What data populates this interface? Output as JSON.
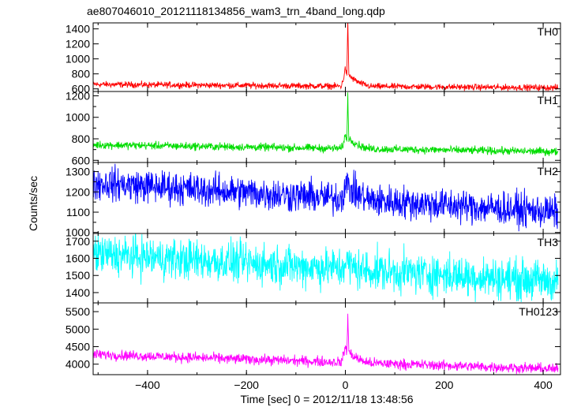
{
  "chart_data": {
    "type": "line",
    "title": "ae807046010_20121118134856_wam3_trn_4band_long.qdp",
    "xlabel": "Time [sec] 0 = 2012/11/18 13:48:56",
    "ylabel": "Counts/sec",
    "xlim": [
      -510,
      435
    ],
    "xticks": [
      -400,
      -200,
      0,
      200,
      400
    ],
    "xtick_labels": [
      "−400",
      "−200",
      "0",
      "200",
      "400"
    ],
    "panels": [
      {
        "name": "TH0",
        "color": "#ff0000",
        "ylim": [
          565,
          1480
        ],
        "yticks": [
          600,
          800,
          1000,
          1200,
          1400
        ],
        "yticks_labeled": [
          600,
          800,
          1000,
          1200,
          1400
        ],
        "series": {
          "start": 660,
          "end": 615,
          "noise": 45,
          "burst": [
            [
              -8,
              0
            ],
            [
              -3,
              120
            ],
            [
              0,
              250
            ],
            [
              3,
              150
            ],
            [
              5,
              860
            ],
            [
              7,
              150
            ],
            [
              15,
              100
            ],
            [
              30,
              40
            ],
            [
              50,
              0
            ]
          ]
        }
      },
      {
        "name": "TH1",
        "color": "#00dd00",
        "ylim": [
          580,
          1240
        ],
        "yticks": [
          600,
          700,
          800,
          900,
          1000,
          1100,
          1200
        ],
        "yticks_labeled": [
          600,
          800,
          1000,
          1200
        ],
        "series": {
          "start": 745,
          "end": 680,
          "noise": 40,
          "burst": [
            [
              -8,
              0
            ],
            [
              -3,
              60
            ],
            [
              0,
              130
            ],
            [
              3,
              90
            ],
            [
              5,
              500
            ],
            [
              7,
              90
            ],
            [
              15,
              70
            ],
            [
              30,
              25
            ],
            [
              50,
              0
            ]
          ]
        }
      },
      {
        "name": "TH2",
        "color": "#0000ff",
        "ylim": [
          995,
          1345
        ],
        "yticks": [
          1000,
          1050,
          1100,
          1150,
          1200,
          1250,
          1300
        ],
        "yticks_labeled": [
          1000,
          1100,
          1200,
          1300
        ],
        "series": {
          "start": 1245,
          "end": 1100,
          "noise": 90,
          "burst": [
            [
              -8,
              0
            ],
            [
              -3,
              40
            ],
            [
              0,
              90
            ],
            [
              3,
              70
            ],
            [
              10,
              50
            ],
            [
              30,
              20
            ],
            [
              50,
              0
            ]
          ]
        }
      },
      {
        "name": "TH3",
        "color": "#00ffff",
        "ylim": [
          1340,
          1745
        ],
        "yticks": [
          1400,
          1500,
          1600,
          1700
        ],
        "yticks_labeled": [
          1400,
          1500,
          1600,
          1700
        ],
        "series": {
          "start": 1625,
          "end": 1465,
          "noise": 130,
          "burst": [
            [
              -8,
              0
            ],
            [
              0,
              40
            ],
            [
              10,
              20
            ],
            [
              30,
              0
            ]
          ]
        }
      },
      {
        "name": "TH0123",
        "color": "#ff00ff",
        "ylim": [
          3700,
          5750
        ],
        "yticks": [
          4000,
          4500,
          5000,
          5500
        ],
        "yticks_labeled": [
          4000,
          4500,
          5000,
          5500
        ],
        "series": {
          "start": 4280,
          "end": 3860,
          "noise": 160,
          "burst": [
            [
              -8,
              0
            ],
            [
              -3,
              250
            ],
            [
              0,
              450
            ],
            [
              3,
              300
            ],
            [
              5,
              1400
            ],
            [
              7,
              300
            ],
            [
              15,
              200
            ],
            [
              30,
              80
            ],
            [
              50,
              0
            ]
          ]
        }
      }
    ],
    "x_range_data": [
      -510,
      430
    ]
  }
}
